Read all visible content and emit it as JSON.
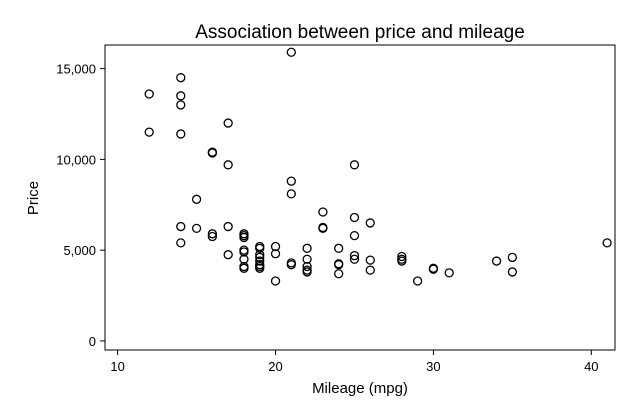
{
  "chart_data": {
    "type": "scatter",
    "title": "Association between price and mileage",
    "xlabel": "Mileage (mpg)",
    "ylabel": "Price",
    "xlim": [
      9.2,
      41.5
    ],
    "ylim": [
      -500,
      16300
    ],
    "xticks": [
      10,
      20,
      30,
      40
    ],
    "xtick_labels": [
      "10",
      "20",
      "30",
      "40"
    ],
    "yticks": [
      0,
      5000,
      10000,
      15000
    ],
    "ytick_labels": [
      "0",
      "5,000",
      "10,000",
      "15,000"
    ],
    "grid": false,
    "legend": "none",
    "marker": "hollow-circle",
    "points": [
      {
        "x": 12,
        "y": 13600
      },
      {
        "x": 12,
        "y": 11500
      },
      {
        "x": 14,
        "y": 14500
      },
      {
        "x": 14,
        "y": 13500
      },
      {
        "x": 14,
        "y": 13000
      },
      {
        "x": 14,
        "y": 11400
      },
      {
        "x": 14,
        "y": 6300
      },
      {
        "x": 14,
        "y": 5400
      },
      {
        "x": 15,
        "y": 7800
      },
      {
        "x": 15,
        "y": 6200
      },
      {
        "x": 16,
        "y": 10400
      },
      {
        "x": 16,
        "y": 10350
      },
      {
        "x": 16,
        "y": 5900
      },
      {
        "x": 16,
        "y": 5750
      },
      {
        "x": 17,
        "y": 12000
      },
      {
        "x": 17,
        "y": 9700
      },
      {
        "x": 17,
        "y": 6300
      },
      {
        "x": 17,
        "y": 4750
      },
      {
        "x": 18,
        "y": 5900
      },
      {
        "x": 18,
        "y": 5800
      },
      {
        "x": 18,
        "y": 5700
      },
      {
        "x": 18,
        "y": 5000
      },
      {
        "x": 18,
        "y": 4900
      },
      {
        "x": 18,
        "y": 4500
      },
      {
        "x": 18,
        "y": 4100
      },
      {
        "x": 18,
        "y": 4000
      },
      {
        "x": 19,
        "y": 5200
      },
      {
        "x": 19,
        "y": 5100
      },
      {
        "x": 19,
        "y": 4750
      },
      {
        "x": 19,
        "y": 4600
      },
      {
        "x": 19,
        "y": 4400
      },
      {
        "x": 19,
        "y": 4200
      },
      {
        "x": 19,
        "y": 4100
      },
      {
        "x": 19,
        "y": 4000
      },
      {
        "x": 20,
        "y": 5200
      },
      {
        "x": 20,
        "y": 4800
      },
      {
        "x": 20,
        "y": 3300
      },
      {
        "x": 21,
        "y": 15900
      },
      {
        "x": 21,
        "y": 8800
      },
      {
        "x": 21,
        "y": 8100
      },
      {
        "x": 21,
        "y": 4300
      },
      {
        "x": 21,
        "y": 4200
      },
      {
        "x": 22,
        "y": 5100
      },
      {
        "x": 22,
        "y": 4500
      },
      {
        "x": 22,
        "y": 4100
      },
      {
        "x": 22,
        "y": 3900
      },
      {
        "x": 22,
        "y": 3800
      },
      {
        "x": 23,
        "y": 7100
      },
      {
        "x": 23,
        "y": 6250
      },
      {
        "x": 23,
        "y": 6200
      },
      {
        "x": 24,
        "y": 5100
      },
      {
        "x": 24,
        "y": 4250
      },
      {
        "x": 24,
        "y": 4200
      },
      {
        "x": 24,
        "y": 3700
      },
      {
        "x": 25,
        "y": 9700
      },
      {
        "x": 25,
        "y": 6800
      },
      {
        "x": 25,
        "y": 5800
      },
      {
        "x": 25,
        "y": 4700
      },
      {
        "x": 25,
        "y": 4500
      },
      {
        "x": 26,
        "y": 6500
      },
      {
        "x": 26,
        "y": 4450
      },
      {
        "x": 26,
        "y": 3900
      },
      {
        "x": 28,
        "y": 4650
      },
      {
        "x": 28,
        "y": 4500
      },
      {
        "x": 28,
        "y": 4400
      },
      {
        "x": 29,
        "y": 3300
      },
      {
        "x": 30,
        "y": 4000
      },
      {
        "x": 30,
        "y": 3950
      },
      {
        "x": 31,
        "y": 3750
      },
      {
        "x": 34,
        "y": 4400
      },
      {
        "x": 35,
        "y": 4600
      },
      {
        "x": 35,
        "y": 3800
      },
      {
        "x": 41,
        "y": 5400
      }
    ]
  }
}
